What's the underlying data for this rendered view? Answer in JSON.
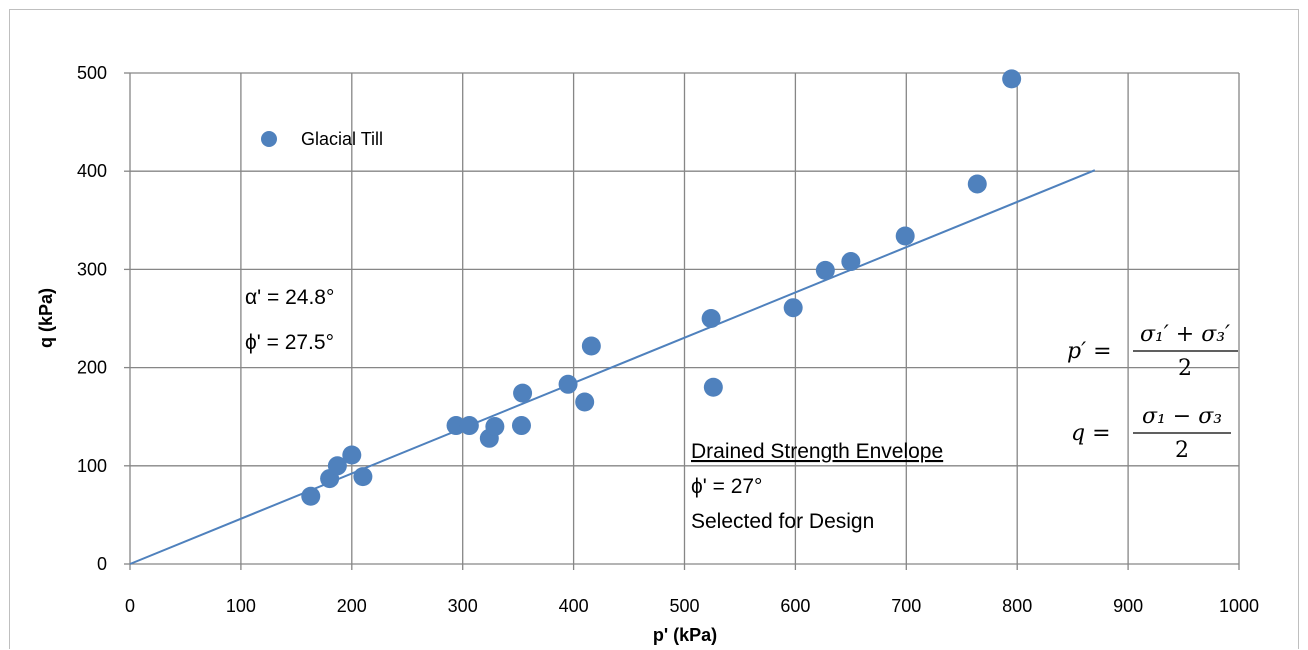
{
  "chart_data": {
    "type": "scatter",
    "xlabel": "p' (kPa)",
    "ylabel": "q (kPa)",
    "xlim": [
      0,
      1000
    ],
    "ylim": [
      0,
      500
    ],
    "x_ticks": [
      "0",
      "100",
      "200",
      "300",
      "400",
      "500",
      "600",
      "700",
      "800",
      "900",
      "1000"
    ],
    "y_ticks": [
      "0",
      "100",
      "200",
      "300",
      "400",
      "500"
    ],
    "grid": true,
    "legend_position": "top-left",
    "series": [
      {
        "name": "Glacial Till",
        "color": "#4f81bd",
        "points": [
          {
            "x": 163,
            "y": 69
          },
          {
            "x": 180,
            "y": 87
          },
          {
            "x": 187,
            "y": 100
          },
          {
            "x": 200,
            "y": 111
          },
          {
            "x": 210,
            "y": 89
          },
          {
            "x": 294,
            "y": 141
          },
          {
            "x": 306,
            "y": 141
          },
          {
            "x": 324,
            "y": 128
          },
          {
            "x": 329,
            "y": 140
          },
          {
            "x": 353,
            "y": 141
          },
          {
            "x": 354,
            "y": 174
          },
          {
            "x": 395,
            "y": 183
          },
          {
            "x": 410,
            "y": 165
          },
          {
            "x": 416,
            "y": 222
          },
          {
            "x": 524,
            "y": 250
          },
          {
            "x": 526,
            "y": 180
          },
          {
            "x": 598,
            "y": 261
          },
          {
            "x": 627,
            "y": 299
          },
          {
            "x": 650,
            "y": 308
          },
          {
            "x": 699,
            "y": 334
          },
          {
            "x": 764,
            "y": 387
          },
          {
            "x": 795,
            "y": 494
          }
        ]
      }
    ],
    "trend_line": {
      "color": "#4f81bd",
      "from": {
        "x": 0,
        "y": 0
      },
      "to": {
        "x": 870,
        "y": 401
      }
    },
    "annotations": {
      "alpha": "α' = 24.8°",
      "phi": "ϕ' = 27.5°",
      "envelope_title": "Drained Strength Envelope",
      "envelope_phi": "ϕ' = 27°",
      "envelope_note": "Selected for Design"
    },
    "equations": {
      "p_lhs": "p′ =",
      "p_num": "σ₁′ + σ₃′",
      "p_den": "2",
      "q_lhs": "q =",
      "q_num": "σ₁ − σ₃",
      "q_den": "2"
    }
  }
}
